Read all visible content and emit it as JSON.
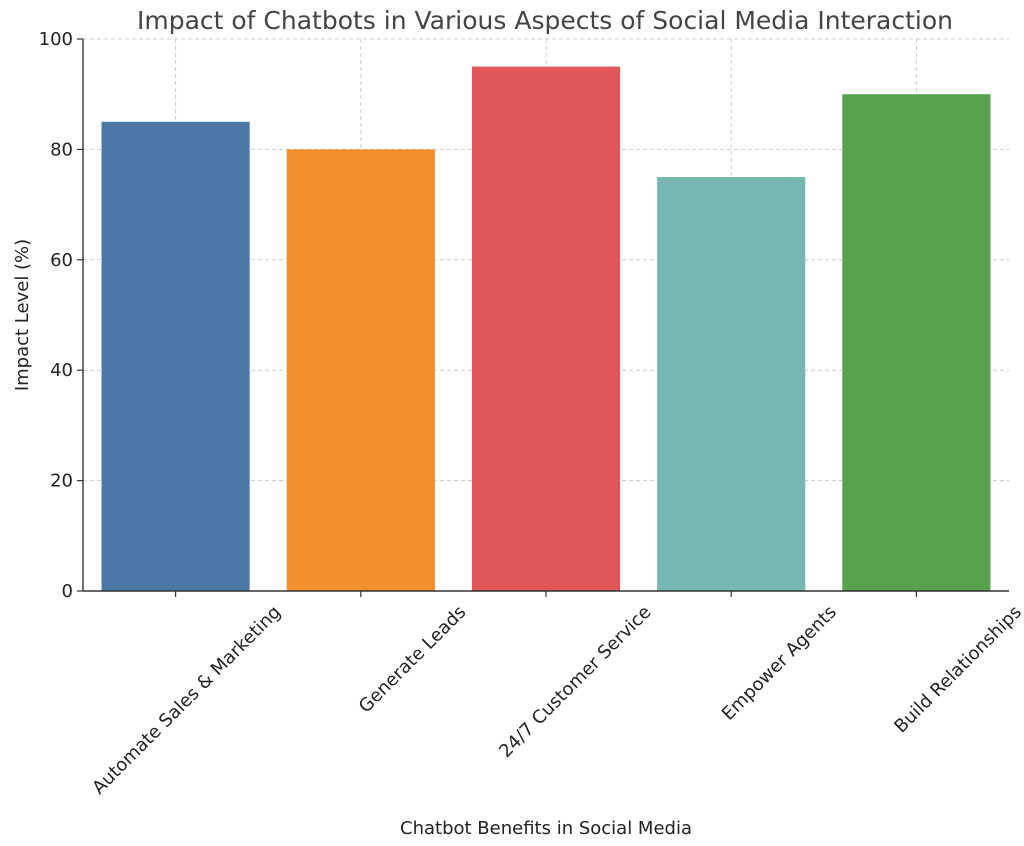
{
  "chart_data": {
    "type": "bar",
    "title": "Impact of Chatbots in Various Aspects of Social Media Interaction",
    "xlabel": "Chatbot Benefits in Social Media",
    "ylabel": "Impact Level (%)",
    "categories": [
      "Automate Sales & Marketing",
      "Generate Leads",
      "24/7 Customer Service",
      "Empower Agents",
      "Build Relationships"
    ],
    "values": [
      85,
      80,
      95,
      75,
      90
    ],
    "colors": [
      "#4c78a8",
      "#f28e2b",
      "#e15759",
      "#76b7b2",
      "#59a14f"
    ],
    "ylim": [
      0,
      100
    ],
    "yticks": [
      0,
      20,
      40,
      60,
      80,
      100
    ],
    "grid": true,
    "legend": "none"
  }
}
